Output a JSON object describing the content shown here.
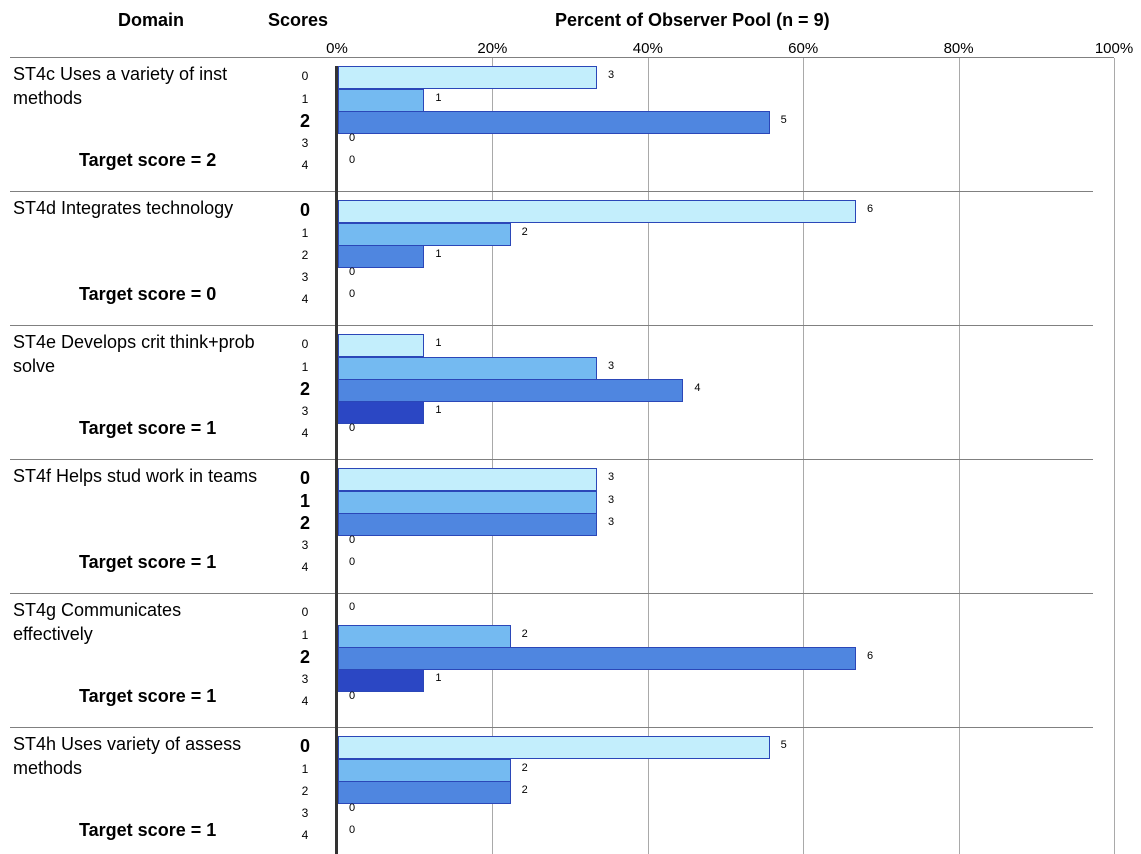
{
  "header": {
    "domain_label": "Domain",
    "scores_label": "Scores",
    "percent_label": "Percent of Observer Pool (n = 9)"
  },
  "chart_data": {
    "type": "bar",
    "orientation": "horizontal",
    "title": "Percent of Observer Pool (n = 9)",
    "pool_size": 9,
    "x_ticks": [
      "0%",
      "20%",
      "40%",
      "60%",
      "80%",
      "100%"
    ],
    "xlim": [
      0,
      100
    ],
    "grid": true,
    "score_levels": [
      "0",
      "1",
      "2",
      "3",
      "4"
    ],
    "bar_colors": [
      "#c3eefc",
      "#74baf1",
      "#4f86e0",
      "#2b47c4",
      "#2b47c4"
    ],
    "domains": [
      {
        "name": "ST4c Uses a variety of inst methods",
        "target_label": "Target score = 2",
        "target_score": 2,
        "counts": [
          3,
          1,
          5,
          0,
          0
        ],
        "bold_scores": [
          2
        ]
      },
      {
        "name": "ST4d Integrates technology",
        "target_label": "Target score = 0",
        "target_score": 0,
        "counts": [
          6,
          2,
          1,
          0,
          0
        ],
        "bold_scores": [
          0
        ]
      },
      {
        "name": "ST4e Develops crit think+prob solve",
        "target_label": "Target score = 1",
        "target_score": 1,
        "counts": [
          1,
          3,
          4,
          1,
          0
        ],
        "bold_scores": [
          2
        ]
      },
      {
        "name": "ST4f Helps stud work in teams",
        "target_label": "Target score = 1",
        "target_score": 1,
        "counts": [
          3,
          3,
          3,
          0,
          0
        ],
        "bold_scores": [
          0,
          1,
          2
        ]
      },
      {
        "name": "ST4g Communicates effectively",
        "target_label": "Target score = 1",
        "target_score": 1,
        "counts": [
          0,
          2,
          6,
          1,
          0
        ],
        "bold_scores": [
          2
        ]
      },
      {
        "name": "ST4h Uses variety of assess methods",
        "target_label": "Target score = 1",
        "target_score": 1,
        "counts": [
          5,
          2,
          2,
          0,
          0
        ],
        "bold_scores": [
          0
        ]
      }
    ]
  }
}
